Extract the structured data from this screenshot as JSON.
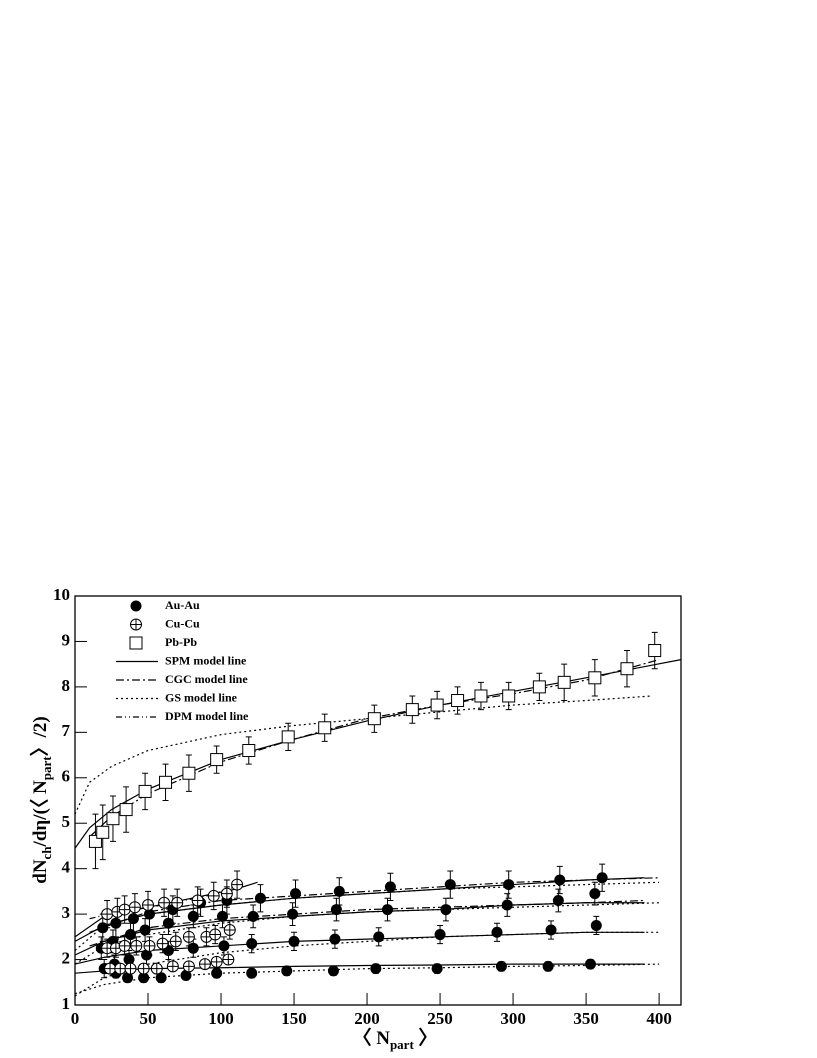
{
  "chart_data": {
    "type": "scatter",
    "xlabel": [
      {
        "text": "〈 N"
      },
      {
        "text": "part",
        "sub": true
      },
      {
        "text": " 〉"
      }
    ],
    "ylabel": [
      {
        "text": "dN"
      },
      {
        "text": "ch",
        "sub": true
      },
      {
        "text": "/dη/(〈 N"
      },
      {
        "text": "part",
        "sub": true
      },
      {
        "text": "〉/2)"
      }
    ],
    "xlim": [
      0,
      415
    ],
    "ylim": [
      1,
      10
    ],
    "xticks": [
      0,
      50,
      100,
      150,
      200,
      250,
      300,
      350,
      400
    ],
    "yticks": [
      1,
      2,
      3,
      4,
      5,
      6,
      7,
      8,
      9,
      10
    ],
    "series": [
      {
        "name": "Au-Au",
        "marker": "filled-circle",
        "datasets": [
          {
            "x": [
              19,
              28,
              40,
              51,
              67,
              86,
              104,
              127,
              151,
              181,
              216,
              257,
              297,
              332,
              361
            ],
            "values": [
              2.7,
              2.8,
              2.9,
              3.0,
              3.1,
              3.25,
              3.3,
              3.35,
              3.45,
              3.5,
              3.6,
              3.65,
              3.65,
              3.75,
              3.8
            ],
            "errors": [
              0.3,
              0.3,
              0.3,
              0.3,
              0.3,
              0.3,
              0.3,
              0.3,
              0.3,
              0.3,
              0.3,
              0.3,
              0.3,
              0.3,
              0.3
            ]
          },
          {
            "x": [
              18,
              26,
              38,
              48,
              64,
              81,
              101,
              122,
              149,
              179,
              214,
              254,
              296,
              331,
              356
            ],
            "values": [
              2.25,
              2.4,
              2.55,
              2.65,
              2.8,
              2.95,
              2.95,
              2.95,
              3.0,
              3.1,
              3.1,
              3.1,
              3.2,
              3.3,
              3.45
            ],
            "errors": [
              0.25,
              0.25,
              0.25,
              0.25,
              0.25,
              0.25,
              0.25,
              0.25,
              0.25,
              0.25,
              0.25,
              0.25,
              0.25,
              0.25,
              0.25
            ]
          },
          {
            "x": [
              20,
              27,
              37,
              49,
              64,
              81,
              102,
              121,
              150,
              178,
              208,
              250,
              289,
              326,
              357
            ],
            "values": [
              1.8,
              1.9,
              2.0,
              2.1,
              2.2,
              2.25,
              2.3,
              2.35,
              2.4,
              2.45,
              2.5,
              2.55,
              2.6,
              2.65,
              2.75
            ],
            "errors": [
              0.2,
              0.2,
              0.2,
              0.2,
              0.2,
              0.2,
              0.2,
              0.2,
              0.2,
              0.2,
              0.2,
              0.2,
              0.2,
              0.2,
              0.2
            ]
          },
          {
            "x": [
              21,
              28,
              36,
              47,
              59,
              76,
              97,
              121,
              145,
              177,
              206,
              248,
              292,
              324,
              353
            ],
            "values": [
              1.8,
              1.7,
              1.6,
              1.6,
              1.6,
              1.65,
              1.7,
              1.7,
              1.75,
              1.75,
              1.8,
              1.8,
              1.85,
              1.85,
              1.9
            ],
            "errors": [
              0.1,
              0.1,
              0.1,
              0.1,
              0.1,
              0.1,
              0.1,
              0.1,
              0.1,
              0.1,
              0.1,
              0.1,
              0.1,
              0.1,
              0.1
            ]
          }
        ]
      },
      {
        "name": "Cu-Cu",
        "marker": "open-circle",
        "datasets": [
          {
            "x": [
              22,
              29,
              34,
              41,
              50,
              61,
              70,
              84,
              95,
              104,
              111
            ],
            "values": [
              3.0,
              3.05,
              3.1,
              3.15,
              3.2,
              3.25,
              3.25,
              3.3,
              3.4,
              3.45,
              3.65
            ],
            "errors": [
              0.3,
              0.3,
              0.3,
              0.3,
              0.3,
              0.3,
              0.3,
              0.3,
              0.3,
              0.3,
              0.3
            ]
          },
          {
            "x": [
              22,
              28,
              34,
              42,
              51,
              60,
              69,
              78,
              90,
              96,
              106
            ],
            "values": [
              2.25,
              2.25,
              2.3,
              2.3,
              2.3,
              2.35,
              2.4,
              2.5,
              2.5,
              2.55,
              2.65
            ],
            "errors": [
              0.2,
              0.2,
              0.2,
              0.2,
              0.2,
              0.2,
              0.2,
              0.2,
              0.2,
              0.2,
              0.2
            ]
          },
          {
            "x": [
              24,
              31,
              38,
              47,
              56,
              67,
              78,
              89,
              97,
              105
            ],
            "values": [
              1.8,
              1.8,
              1.8,
              1.8,
              1.8,
              1.85,
              1.85,
              1.9,
              1.95,
              2.0
            ],
            "errors": [
              0.1,
              0.1,
              0.1,
              0.1,
              0.1,
              0.1,
              0.1,
              0.1,
              0.1,
              0.1
            ]
          }
        ]
      },
      {
        "name": "Pb-Pb",
        "marker": "open-square",
        "datasets": [
          {
            "x": [
              14,
              19,
              26,
              35,
              48,
              62,
              78,
              97,
              119,
              146,
              171,
              205,
              231,
              248,
              262,
              278,
              297,
              318,
              335,
              356,
              378,
              397
            ],
            "values": [
              4.6,
              4.8,
              5.1,
              5.3,
              5.7,
              5.9,
              6.1,
              6.4,
              6.6,
              6.9,
              7.1,
              7.3,
              7.5,
              7.6,
              7.7,
              7.8,
              7.8,
              8.0,
              8.1,
              8.2,
              8.4,
              8.8
            ],
            "errors": [
              0.6,
              0.6,
              0.5,
              0.5,
              0.4,
              0.4,
              0.4,
              0.3,
              0.3,
              0.3,
              0.3,
              0.3,
              0.3,
              0.3,
              0.3,
              0.3,
              0.3,
              0.3,
              0.4,
              0.4,
              0.4,
              0.4
            ]
          }
        ]
      }
    ],
    "models": [
      {
        "name": "SPM model line",
        "dash": "none",
        "curves": [
          {
            "x": [
              0,
              10,
              25,
              50,
              100,
              150,
              200,
              250,
              300,
              350,
              415
            ],
            "values": [
              4.45,
              4.9,
              5.3,
              5.75,
              6.4,
              6.85,
              7.25,
              7.6,
              7.9,
              8.2,
              8.6
            ]
          },
          {
            "x": [
              0,
              20,
              50,
              100,
              150,
              200,
              250,
              300,
              350,
              390
            ],
            "values": [
              2.4,
              2.75,
              3.0,
              3.2,
              3.35,
              3.45,
              3.55,
              3.65,
              3.75,
              3.8
            ]
          },
          {
            "x": [
              0,
              20,
              50,
              100,
              150,
              200,
              250,
              300,
              350,
              390
            ],
            "values": [
              2.1,
              2.4,
              2.65,
              2.85,
              2.95,
              3.05,
              3.1,
              3.2,
              3.25,
              3.25
            ]
          },
          {
            "x": [
              0,
              20,
              50,
              100,
              150,
              200,
              250,
              300,
              350,
              390
            ],
            "values": [
              1.9,
              2.05,
              2.2,
              2.3,
              2.4,
              2.45,
              2.5,
              2.55,
              2.6,
              2.6
            ]
          },
          {
            "x": [
              0,
              20,
              50,
              100,
              150,
              200,
              250,
              300,
              350,
              390
            ],
            "values": [
              1.7,
              1.75,
              1.8,
              1.82,
              1.85,
              1.87,
              1.88,
              1.9,
              1.9,
              1.9
            ]
          },
          {
            "x": [
              0,
              20,
              50,
              80,
              110,
              125
            ],
            "values": [
              2.5,
              2.95,
              3.15,
              3.35,
              3.55,
              3.7
            ]
          }
        ]
      },
      {
        "name": "CGC model line",
        "dash": "8 3 2 3",
        "curves": [
          {
            "x": [
              10,
              25,
              50,
              100,
              150,
              200,
              250,
              300,
              350,
              400
            ],
            "values": [
              4.7,
              5.15,
              5.65,
              6.35,
              6.85,
              7.3,
              7.6,
              7.85,
              8.15,
              8.6
            ]
          },
          {
            "x": [
              10,
              50,
              100,
              150,
              200,
              250,
              300,
              350,
              400
            ],
            "values": [
              2.6,
              3.05,
              3.3,
              3.4,
              3.5,
              3.6,
              3.7,
              3.75,
              3.8
            ]
          },
          {
            "x": [
              10,
              50,
              100,
              150,
              200,
              250,
              300,
              350,
              390
            ],
            "values": [
              2.3,
              2.7,
              2.9,
              3.0,
              3.1,
              3.15,
              3.2,
              3.25,
              3.3
            ]
          }
        ]
      },
      {
        "name": "GS model line",
        "dash": "2 3",
        "curves": [
          {
            "x": [
              0,
              10,
              25,
              50,
              100,
              150,
              200,
              250,
              300,
              350,
              395
            ],
            "values": [
              5.2,
              5.9,
              6.25,
              6.6,
              6.95,
              7.15,
              7.3,
              7.45,
              7.6,
              7.7,
              7.8
            ]
          },
          {
            "x": [
              0,
              20,
              50,
              100,
              150,
              200,
              250,
              300,
              350,
              400
            ],
            "values": [
              2.2,
              2.75,
              3.0,
              3.2,
              3.35,
              3.45,
              3.55,
              3.6,
              3.65,
              3.7
            ]
          },
          {
            "x": [
              0,
              20,
              50,
              100,
              150,
              200,
              250,
              300,
              350,
              400
            ],
            "values": [
              1.9,
              2.3,
              2.55,
              2.8,
              2.95,
              3.05,
              3.1,
              3.15,
              3.2,
              3.25
            ]
          },
          {
            "x": [
              0,
              20,
              50,
              100,
              150,
              200,
              250,
              300,
              350,
              400
            ],
            "values": [
              1.2,
              1.6,
              1.9,
              2.15,
              2.3,
              2.4,
              2.5,
              2.55,
              2.6,
              2.6
            ]
          },
          {
            "x": [
              0,
              20,
              50,
              100,
              150,
              200,
              250,
              300,
              350,
              400
            ],
            "values": [
              1.25,
              1.45,
              1.6,
              1.7,
              1.75,
              1.8,
              1.82,
              1.85,
              1.87,
              1.9
            ]
          }
        ]
      },
      {
        "name": "DPM model line",
        "dash": "6 3 1 3 1 3",
        "curves": [
          {
            "x": [
              10,
              30,
              60,
              90,
              110
            ],
            "values": [
              2.9,
              3.05,
              3.2,
              3.4,
              3.6
            ]
          }
        ]
      }
    ]
  }
}
